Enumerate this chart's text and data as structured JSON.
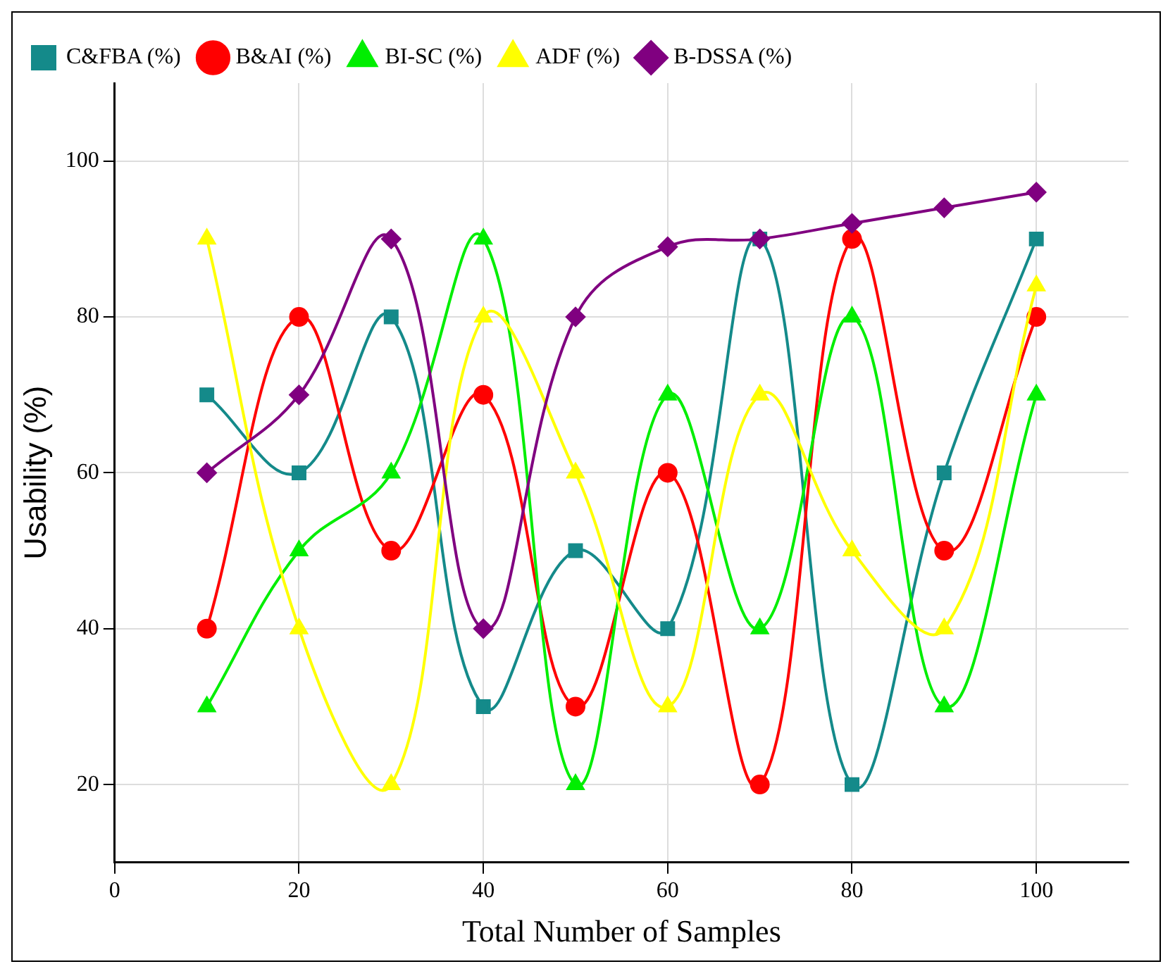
{
  "chart_data": {
    "type": "line",
    "xlabel": "Total Number of Samples",
    "ylabel": "Usability (%)",
    "x": [
      10,
      20,
      30,
      40,
      50,
      60,
      70,
      80,
      90,
      100
    ],
    "xlim": [
      0,
      110
    ],
    "xticks": [
      0,
      20,
      40,
      60,
      80,
      100
    ],
    "ylim": [
      10,
      110
    ],
    "yticks": [
      20,
      40,
      60,
      80,
      100
    ],
    "grid": true,
    "legend": "top left",
    "line_style": "solid",
    "series": [
      {
        "name": "C&FBA (%)",
        "color": "#148a8a",
        "marker": "square",
        "values": [
          70,
          60,
          80,
          30,
          50,
          40,
          90,
          20,
          60,
          90
        ]
      },
      {
        "name": "B&AI (%)",
        "color": "#ff0000",
        "marker": "circle",
        "values": [
          40,
          80,
          50,
          70,
          30,
          60,
          20,
          90,
          50,
          80
        ]
      },
      {
        "name": "BI-SC (%)",
        "color": "#00ee00",
        "marker": "triangle",
        "values": [
          30,
          50,
          60,
          90,
          20,
          70,
          40,
          80,
          30,
          70
        ]
      },
      {
        "name": "ADF (%)",
        "color": "#ffff00",
        "marker": "triangle",
        "values": [
          90,
          40,
          20,
          80,
          60,
          30,
          70,
          50,
          40,
          84
        ]
      },
      {
        "name": "B-DSSA (%)",
        "color": "#800080",
        "marker": "diamond",
        "values": [
          60,
          70,
          90,
          40,
          80,
          89,
          90,
          92,
          94,
          96
        ]
      }
    ]
  }
}
